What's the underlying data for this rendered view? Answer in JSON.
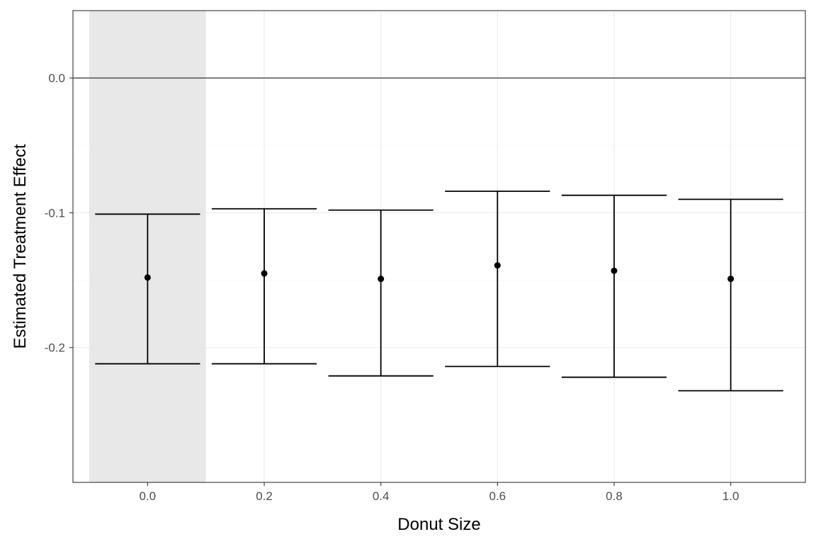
{
  "chart_data": {
    "type": "errorbar",
    "xlabel": "Donut Size",
    "ylabel": "Estimated Treatment Effect",
    "xlim": [
      -0.128,
      1.128
    ],
    "ylim": [
      -0.3,
      0.05
    ],
    "x_ticks": [
      "0.0",
      "0.2",
      "0.4",
      "0.6",
      "0.8",
      "1.0"
    ],
    "y_ticks": [
      "0.0",
      "-0.1",
      "-0.2"
    ],
    "grid": true,
    "hline": 0.0,
    "highlight_region": {
      "x_range": [
        -0.1,
        0.1
      ],
      "color": "#e5e5e5"
    },
    "points": [
      {
        "x": 0.0,
        "estimate": -0.148,
        "lower": -0.212,
        "upper": -0.101
      },
      {
        "x": 0.2,
        "estimate": -0.145,
        "lower": -0.212,
        "upper": -0.097
      },
      {
        "x": 0.4,
        "estimate": -0.149,
        "lower": -0.221,
        "upper": -0.098
      },
      {
        "x": 0.6,
        "estimate": -0.139,
        "lower": -0.214,
        "upper": -0.084
      },
      {
        "x": 0.8,
        "estimate": -0.143,
        "lower": -0.222,
        "upper": -0.087
      },
      {
        "x": 1.0,
        "estimate": -0.149,
        "lower": -0.232,
        "upper": -0.09
      }
    ],
    "colors": {
      "point": "#000000",
      "grid": "#ebebeb",
      "panel_border": "#333333",
      "tick_text": "#4d4d4d"
    }
  }
}
